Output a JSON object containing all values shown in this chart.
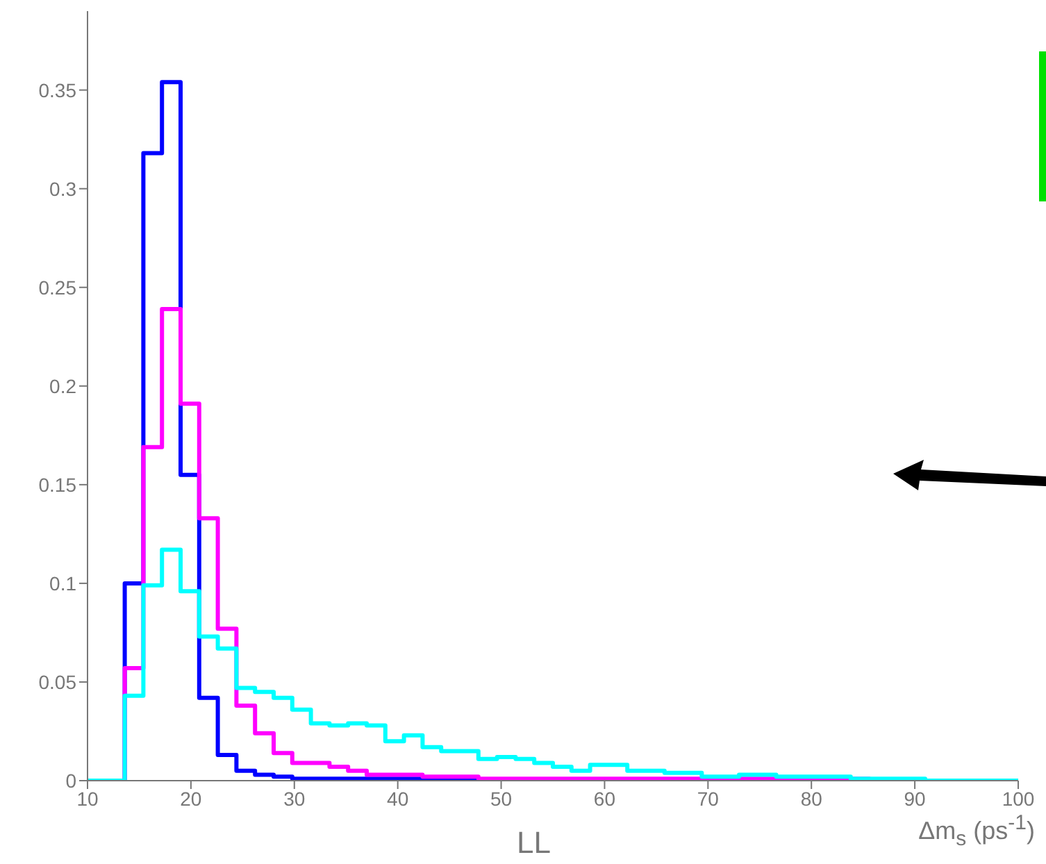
{
  "chart_data": {
    "type": "histogram",
    "xlabel": "Δm$_{s}$ (ps$^{-1}$)",
    "annotations": [
      "LL"
    ],
    "bins": [
      10,
      11.8,
      13.6,
      15.4,
      17.2,
      19,
      20.8,
      22.6,
      24.4,
      26.2,
      28,
      29.8,
      31.6,
      33.4,
      35.2,
      37,
      38.8,
      40.6,
      42.4,
      44.2,
      46,
      47.8,
      49.6,
      51.4,
      53.2,
      55,
      56.8,
      58.6,
      60.4,
      62.2,
      64,
      65.8,
      67.6,
      69.4,
      71.2,
      73,
      74.8,
      76.6,
      78.4,
      80.2,
      82,
      83.8,
      85.6,
      87.4,
      89.2,
      91,
      92.8,
      94.6,
      96.4,
      98.2,
      100
    ],
    "series": [
      {
        "color": "#0000ff",
        "values": [
          0,
          0,
          0.1,
          0.318,
          0.354,
          0.155,
          0.042,
          0.013,
          0.005,
          0.003,
          0.002,
          0.001,
          0.001,
          0.001,
          0.001,
          0.001,
          0.001,
          0.001,
          0.001,
          0.001,
          0,
          0,
          0,
          0,
          0,
          0,
          0,
          0,
          0,
          0,
          0,
          0,
          0,
          0,
          0,
          0,
          0,
          0,
          0,
          0,
          0,
          0,
          0,
          0,
          0,
          0,
          0,
          0,
          0,
          0
        ]
      },
      {
        "color": "#ff00ff",
        "values": [
          0,
          0,
          0.057,
          0.169,
          0.239,
          0.191,
          0.133,
          0.077,
          0.038,
          0.024,
          0.014,
          0.009,
          0.009,
          0.007,
          0.005,
          0.003,
          0.003,
          0.003,
          0.002,
          0.002,
          0.002,
          0.001,
          0.001,
          0.001,
          0.001,
          0.001,
          0.001,
          0.001,
          0.001,
          0.001,
          0.001,
          0.001,
          0.001,
          0.001,
          0.001,
          0.001,
          0.001,
          0.001,
          0.001,
          0.001,
          0.001,
          0.001,
          0,
          0,
          0,
          0,
          0,
          0,
          0,
          0
        ]
      },
      {
        "color": "#00ffff",
        "values": [
          0,
          0,
          0.043,
          0.099,
          0.117,
          0.096,
          0.073,
          0.067,
          0.047,
          0.045,
          0.042,
          0.036,
          0.029,
          0.028,
          0.029,
          0.028,
          0.02,
          0.023,
          0.017,
          0.015,
          0.015,
          0.011,
          0.012,
          0.011,
          0.009,
          0.007,
          0.005,
          0.008,
          0.008,
          0.005,
          0.005,
          0.004,
          0.004,
          0.002,
          0.002,
          0.003,
          0.003,
          0.002,
          0.002,
          0.002,
          0.002,
          0.001,
          0.001,
          0.001,
          0.001,
          0,
          0,
          0,
          0,
          0
        ]
      }
    ],
    "xlim": [
      10,
      100
    ],
    "xticks": [
      10,
      20,
      30,
      40,
      50,
      60,
      70,
      80,
      90,
      100
    ],
    "ylim": [
      0,
      0.39
    ],
    "yticks": [
      0,
      0.05,
      0.1,
      0.15,
      0.2,
      0.25,
      0.3,
      0.35
    ],
    "grid": false
  }
}
